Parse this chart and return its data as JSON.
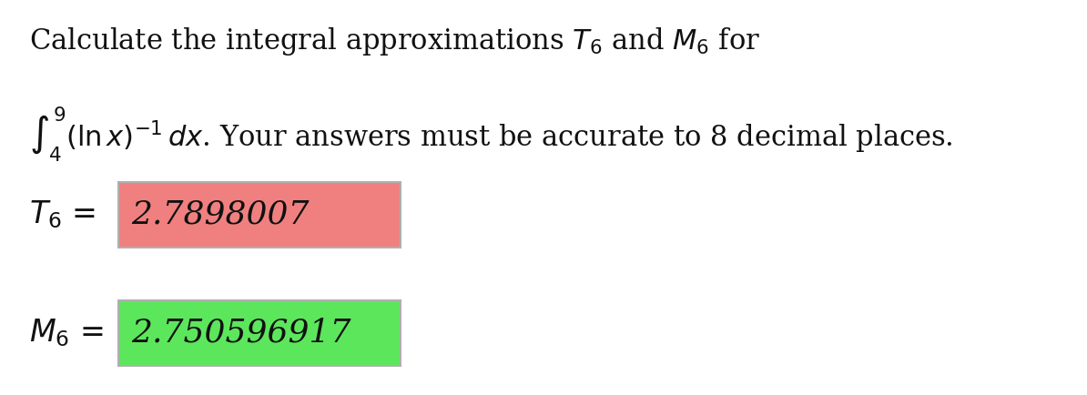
{
  "background_color": "#ffffff",
  "line1": "Calculate the integral approximations $T_6$ and $M_6$ for",
  "line2": "$\\int_4^9 (\\ln x)^{-1}\\, dx$. Your answers must be accurate to 8 decimal places.",
  "t6_label": "$T_6$ =",
  "t6_value": "2.7898007",
  "t6_box_color": "#f08080",
  "t6_box_edge_color": "#b0b0b0",
  "m6_label": "$M_6$ =",
  "m6_value": "2.750596917",
  "m6_box_color": "#5ce65c",
  "m6_box_edge_color": "#b0b0b0",
  "text_color": "#111111",
  "title_fontsize": 22,
  "label_fontsize": 24,
  "value_fontsize": 26,
  "fig_width": 11.94,
  "fig_height": 4.34,
  "dpi": 100
}
